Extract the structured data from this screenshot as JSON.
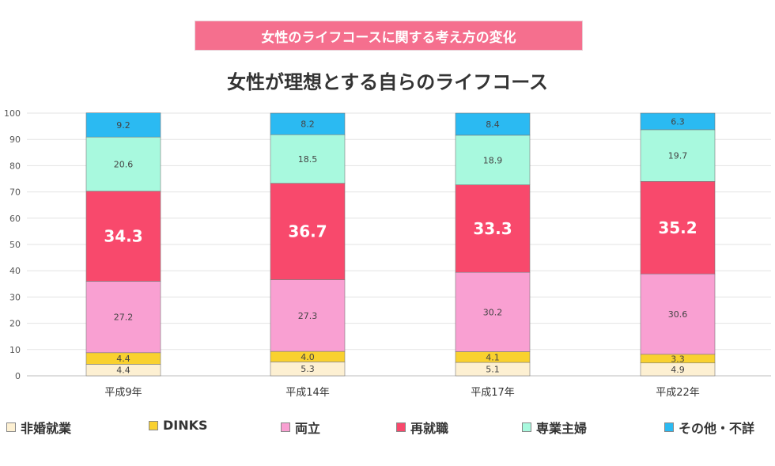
{
  "banner": "女性のライフコースに関する考え方の変化",
  "chart_data": {
    "type": "bar",
    "stacked": true,
    "title": "女性が理想とする自らのライフコース",
    "categories": [
      "平成9年",
      "平成14年",
      "平成17年",
      "平成22年"
    ],
    "ylim": [
      0,
      100
    ],
    "yticks": [
      0,
      10,
      20,
      30,
      40,
      50,
      60,
      70,
      80,
      90,
      100
    ],
    "grid": true,
    "legend_position": "bottom",
    "series": [
      {
        "name": "非婚就業",
        "color": "#fdf0d2",
        "values": [
          4.4,
          5.3,
          5.1,
          4.9
        ]
      },
      {
        "name": "DINKS",
        "color": "#f9d12f",
        "values": [
          4.4,
          4.0,
          4.1,
          3.3
        ]
      },
      {
        "name": "両立",
        "color": "#f9a0d2",
        "values": [
          27.2,
          27.3,
          30.2,
          30.6
        ]
      },
      {
        "name": "再就職",
        "color": "#f8496c",
        "values": [
          34.3,
          36.7,
          33.3,
          35.2
        ]
      },
      {
        "name": "専業主婦",
        "color": "#a8f9de",
        "values": [
          20.6,
          18.5,
          18.9,
          19.7
        ]
      },
      {
        "name": "その他・不詳",
        "color": "#2bbaf2",
        "values": [
          9.2,
          8.2,
          8.4,
          6.3
        ]
      }
    ],
    "labels": [
      [
        "4.4",
        "5.3",
        "5.1",
        "4.9"
      ],
      [
        "4.4",
        "4.0",
        "4.1",
        "3.3"
      ],
      [
        "27.2",
        "27.3",
        "30.2",
        "30.6"
      ],
      [
        "34.3",
        "36.7",
        "33.3",
        "35.2"
      ],
      [
        "20.6",
        "18.5",
        "18.9",
        "19.7"
      ],
      [
        "9.2",
        "8.2",
        "8.4",
        "6.3"
      ]
    ]
  }
}
